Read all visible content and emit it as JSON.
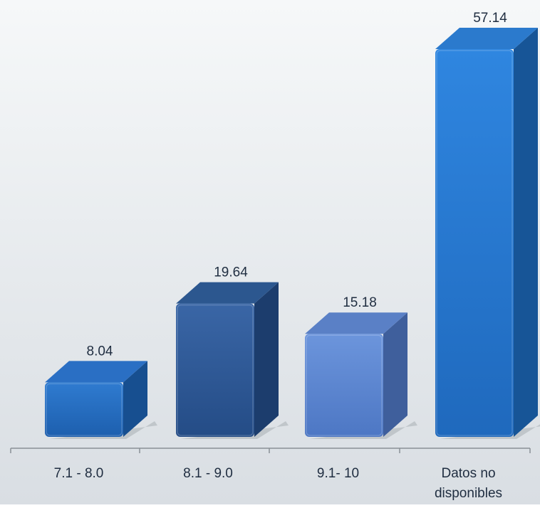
{
  "chart_data": {
    "type": "bar",
    "categories": [
      [
        "7.1 - 8.0"
      ],
      [
        "8.1 - 9.0"
      ],
      [
        "9.1- 10"
      ],
      [
        "Datos no",
        "disponibles"
      ]
    ],
    "values": [
      8.04,
      19.64,
      15.18,
      57.14
    ],
    "value_labels": [
      "8.04",
      "19.64",
      "15.18",
      "57.14"
    ],
    "ylim": [
      0,
      57.14
    ],
    "grid": false,
    "legend": "none",
    "bar_colors": [
      {
        "front_top": "#2f7bd0",
        "front_bottom": "#1d5fae",
        "top": "#2a6fc4",
        "side": "#174f90"
      },
      {
        "front_top": "#3a66a6",
        "front_bottom": "#244c86",
        "top": "#2c578f",
        "side": "#1c3d6d"
      },
      {
        "front_top": "#6c95dc",
        "front_bottom": "#4d77c4",
        "top": "#5a80c6",
        "side": "#3f5f9c"
      },
      {
        "front_top": "#2f86e0",
        "front_bottom": "#1f69bd",
        "top": "#2b7acd",
        "side": "#175597"
      }
    ],
    "background": {
      "top": "#f6f8f9",
      "bottom": "#d9dee3"
    },
    "axis_color": "#8a9096"
  }
}
